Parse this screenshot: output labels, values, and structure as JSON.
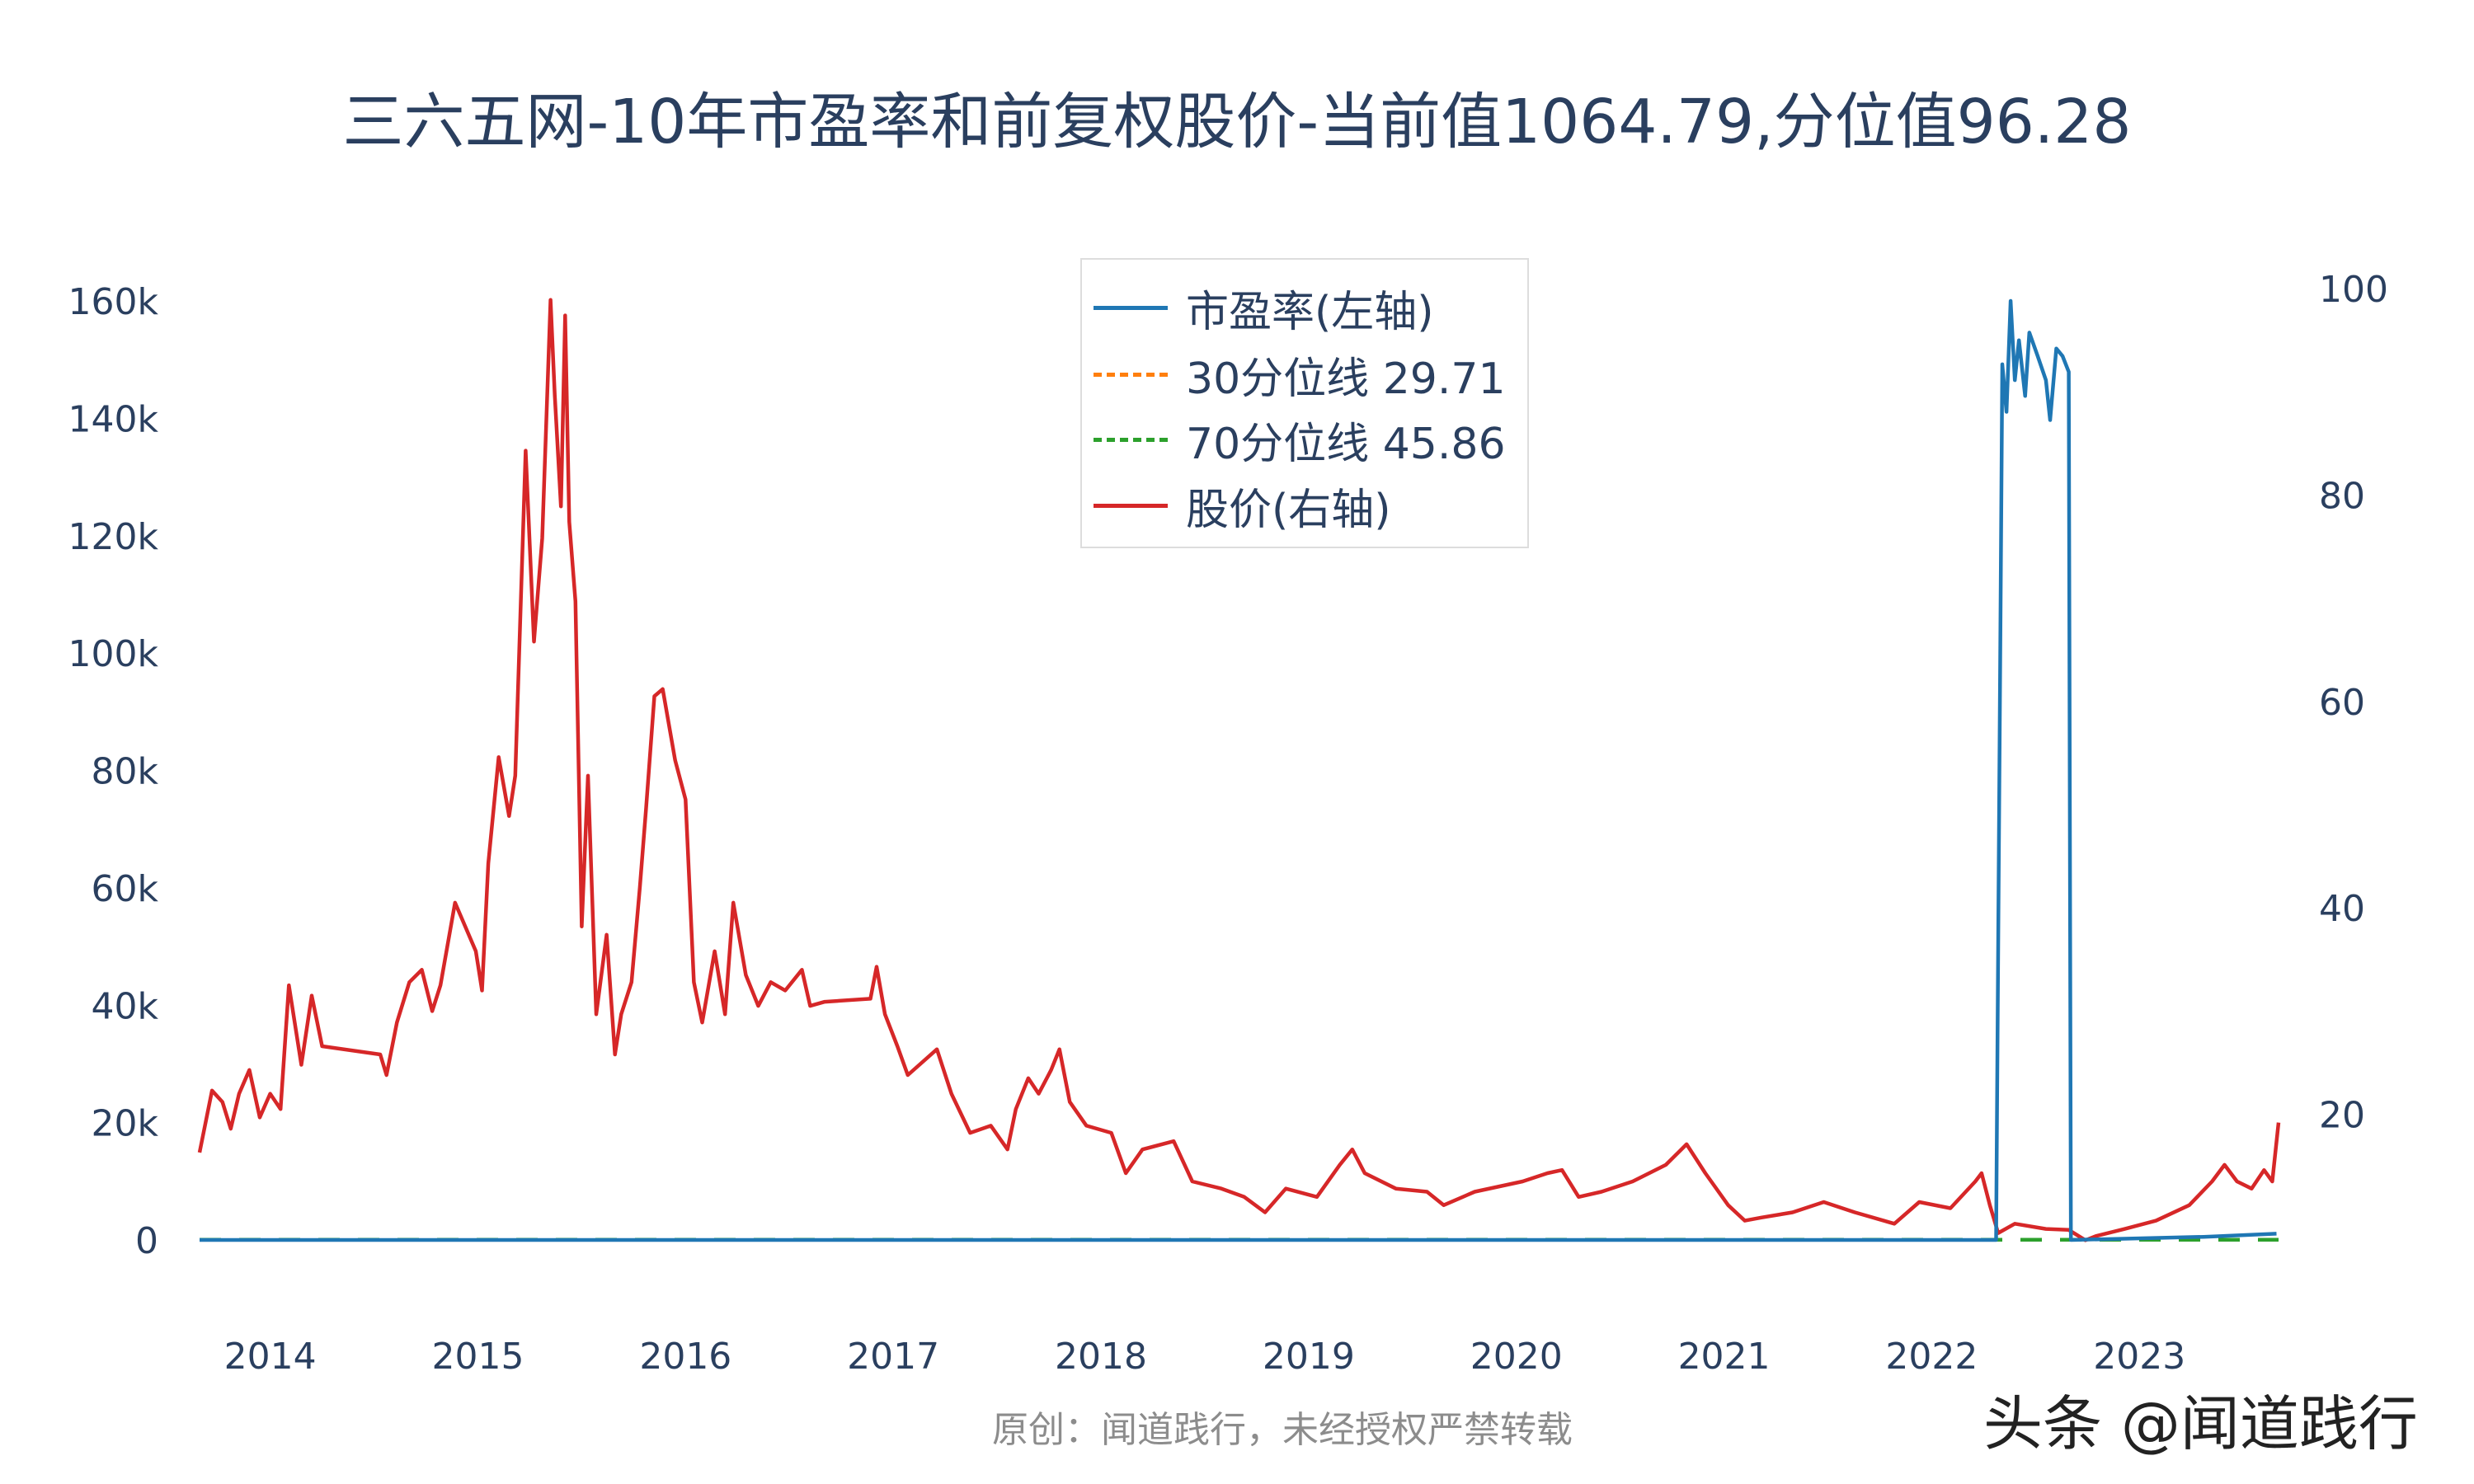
{
  "colors": {
    "pe": "#1f77b4",
    "p30": "#ff7f0e",
    "p70": "#2ca02c",
    "price": "#d62728",
    "text": "#2a3f5f"
  },
  "legend": {
    "pe": "市盈率(左轴)",
    "p30": "30分位线 29.71",
    "p70": "70分位线 45.86",
    "price": "股价(右轴)"
  },
  "footer": "原创：闻道践行，未经授权严禁转载",
  "watermark": "头条 @闻道践行",
  "chart_data": {
    "type": "line",
    "title": "三六五网-10年市盈率和前复权股价-当前值1064.79,分位值96.28",
    "xlabel": "",
    "ylabel": "",
    "x_ticks": [
      "2014",
      "2015",
      "2016",
      "2017",
      "2018",
      "2019",
      "2020",
      "2021",
      "2022",
      "2023"
    ],
    "xlim": [
      2013.66,
      2023.67
    ],
    "y_left": {
      "ticks": [
        "0",
        "20k",
        "40k",
        "60k",
        "80k",
        "100k",
        "120k",
        "140k",
        "160k"
      ],
      "tick_values": [
        0,
        20000,
        40000,
        60000,
        80000,
        100000,
        120000,
        140000,
        160000
      ],
      "range": [
        -3000,
        160000
      ]
    },
    "y_right": {
      "ticks": [
        "20",
        "40",
        "60",
        "80",
        "100"
      ],
      "tick_values": [
        20,
        40,
        60,
        80,
        100
      ],
      "range": [
        -15,
        100
      ]
    },
    "grid": false,
    "legend_position": "top-center",
    "series": [
      {
        "name": "市盈率(左轴)",
        "axis": "left",
        "style": "solid",
        "color_key": "pe",
        "points": [
          [
            2013.66,
            0
          ],
          [
            2022.31,
            0
          ],
          [
            2022.34,
            149200
          ],
          [
            2022.36,
            141100
          ],
          [
            2022.38,
            160000
          ],
          [
            2022.4,
            146500
          ],
          [
            2022.42,
            153300
          ],
          [
            2022.45,
            143800
          ],
          [
            2022.47,
            154600
          ],
          [
            2022.51,
            150600
          ],
          [
            2022.55,
            146500
          ],
          [
            2022.57,
            139700
          ],
          [
            2022.6,
            151900
          ],
          [
            2022.63,
            150600
          ],
          [
            2022.66,
            147900
          ],
          [
            2022.67,
            0
          ],
          [
            2023.31,
            540
          ],
          [
            2023.66,
            1065
          ]
        ]
      },
      {
        "name": "30分位线 29.71",
        "axis": "left",
        "style": "dash",
        "color_key": "p30",
        "points": [
          [
            2013.66,
            29.71
          ],
          [
            2023.67,
            29.71
          ]
        ]
      },
      {
        "name": "70分位线 45.86",
        "axis": "left",
        "style": "dash",
        "color_key": "p70",
        "points": [
          [
            2013.66,
            45.86
          ],
          [
            2023.67,
            45.86
          ]
        ]
      },
      {
        "name": "股价(右轴)",
        "axis": "right",
        "style": "solid",
        "color_key": "price",
        "points": [
          [
            2013.66,
            16.3
          ],
          [
            2013.72,
            22.3
          ],
          [
            2013.77,
            21.2
          ],
          [
            2013.81,
            18.6
          ],
          [
            2013.85,
            22.0
          ],
          [
            2013.9,
            24.3
          ],
          [
            2013.95,
            19.7
          ],
          [
            2014.0,
            22.0
          ],
          [
            2014.05,
            20.5
          ],
          [
            2014.09,
            32.5
          ],
          [
            2014.15,
            24.8
          ],
          [
            2014.2,
            31.5
          ],
          [
            2014.25,
            26.6
          ],
          [
            2014.53,
            25.8
          ],
          [
            2014.56,
            23.8
          ],
          [
            2014.61,
            28.9
          ],
          [
            2014.67,
            32.8
          ],
          [
            2014.73,
            34.0
          ],
          [
            2014.78,
            30.0
          ],
          [
            2014.82,
            32.5
          ],
          [
            2014.89,
            40.5
          ],
          [
            2014.99,
            35.8
          ],
          [
            2015.02,
            32.0
          ],
          [
            2015.05,
            44.3
          ],
          [
            2015.1,
            54.6
          ],
          [
            2015.15,
            48.9
          ],
          [
            2015.18,
            52.8
          ],
          [
            2015.23,
            84.3
          ],
          [
            2015.27,
            65.8
          ],
          [
            2015.31,
            75.8
          ],
          [
            2015.35,
            98.9
          ],
          [
            2015.37,
            89.7
          ],
          [
            2015.4,
            78.9
          ],
          [
            2015.42,
            97.4
          ],
          [
            2015.44,
            77.4
          ],
          [
            2015.47,
            69.7
          ],
          [
            2015.5,
            38.2
          ],
          [
            2015.53,
            52.8
          ],
          [
            2015.57,
            29.7
          ],
          [
            2015.62,
            37.4
          ],
          [
            2015.66,
            25.8
          ],
          [
            2015.69,
            29.7
          ],
          [
            2015.74,
            32.8
          ],
          [
            2015.78,
            42.0
          ],
          [
            2015.81,
            49.7
          ],
          [
            2015.85,
            60.5
          ],
          [
            2015.89,
            61.2
          ],
          [
            2015.95,
            54.3
          ],
          [
            2016.0,
            50.5
          ],
          [
            2016.04,
            32.8
          ],
          [
            2016.08,
            28.9
          ],
          [
            2016.14,
            35.8
          ],
          [
            2016.19,
            29.7
          ],
          [
            2016.23,
            40.5
          ],
          [
            2016.29,
            33.5
          ],
          [
            2016.35,
            30.5
          ],
          [
            2016.41,
            32.8
          ],
          [
            2016.48,
            32.0
          ],
          [
            2016.56,
            34.0
          ],
          [
            2016.6,
            30.5
          ],
          [
            2016.67,
            30.9
          ],
          [
            2016.89,
            31.2
          ],
          [
            2016.92,
            34.3
          ],
          [
            2016.96,
            29.7
          ],
          [
            2017.02,
            26.6
          ],
          [
            2017.07,
            23.8
          ],
          [
            2017.21,
            26.3
          ],
          [
            2017.28,
            22.0
          ],
          [
            2017.37,
            18.2
          ],
          [
            2017.47,
            18.9
          ],
          [
            2017.55,
            16.6
          ],
          [
            2017.59,
            20.5
          ],
          [
            2017.65,
            23.5
          ],
          [
            2017.7,
            22.0
          ],
          [
            2017.76,
            24.3
          ],
          [
            2017.8,
            26.3
          ],
          [
            2017.85,
            21.2
          ],
          [
            2017.93,
            18.9
          ],
          [
            2018.05,
            18.2
          ],
          [
            2018.12,
            14.3
          ],
          [
            2018.2,
            16.6
          ],
          [
            2018.35,
            17.4
          ],
          [
            2018.44,
            13.5
          ],
          [
            2018.58,
            12.8
          ],
          [
            2018.69,
            12.0
          ],
          [
            2018.79,
            10.5
          ],
          [
            2018.89,
            12.8
          ],
          [
            2019.04,
            12.0
          ],
          [
            2019.15,
            15.1
          ],
          [
            2019.21,
            16.6
          ],
          [
            2019.27,
            14.3
          ],
          [
            2019.42,
            12.8
          ],
          [
            2019.57,
            12.5
          ],
          [
            2019.65,
            11.2
          ],
          [
            2019.8,
            12.5
          ],
          [
            2020.03,
            13.5
          ],
          [
            2020.15,
            14.3
          ],
          [
            2020.22,
            14.6
          ],
          [
            2020.3,
            12.0
          ],
          [
            2020.41,
            12.5
          ],
          [
            2020.56,
            13.5
          ],
          [
            2020.72,
            15.1
          ],
          [
            2020.82,
            17.1
          ],
          [
            2020.91,
            14.3
          ],
          [
            2021.02,
            11.2
          ],
          [
            2021.1,
            9.7
          ],
          [
            2021.18,
            10.0
          ],
          [
            2021.33,
            10.5
          ],
          [
            2021.48,
            11.5
          ],
          [
            2021.63,
            10.5
          ],
          [
            2021.82,
            9.4
          ],
          [
            2021.94,
            11.5
          ],
          [
            2022.09,
            10.9
          ],
          [
            2022.21,
            13.5
          ],
          [
            2022.24,
            14.3
          ],
          [
            2022.28,
            11.2
          ],
          [
            2022.32,
            8.5
          ],
          [
            2022.4,
            9.4
          ],
          [
            2022.55,
            8.9
          ],
          [
            2022.66,
            8.8
          ],
          [
            2022.74,
            7.8
          ],
          [
            2022.79,
            8.2
          ],
          [
            2022.93,
            8.9
          ],
          [
            2023.08,
            9.7
          ],
          [
            2023.24,
            11.2
          ],
          [
            2023.35,
            13.5
          ],
          [
            2023.41,
            15.1
          ],
          [
            2023.47,
            13.5
          ],
          [
            2023.54,
            12.8
          ],
          [
            2023.6,
            14.6
          ],
          [
            2023.64,
            13.5
          ],
          [
            2023.67,
            19.2
          ]
        ]
      }
    ]
  }
}
